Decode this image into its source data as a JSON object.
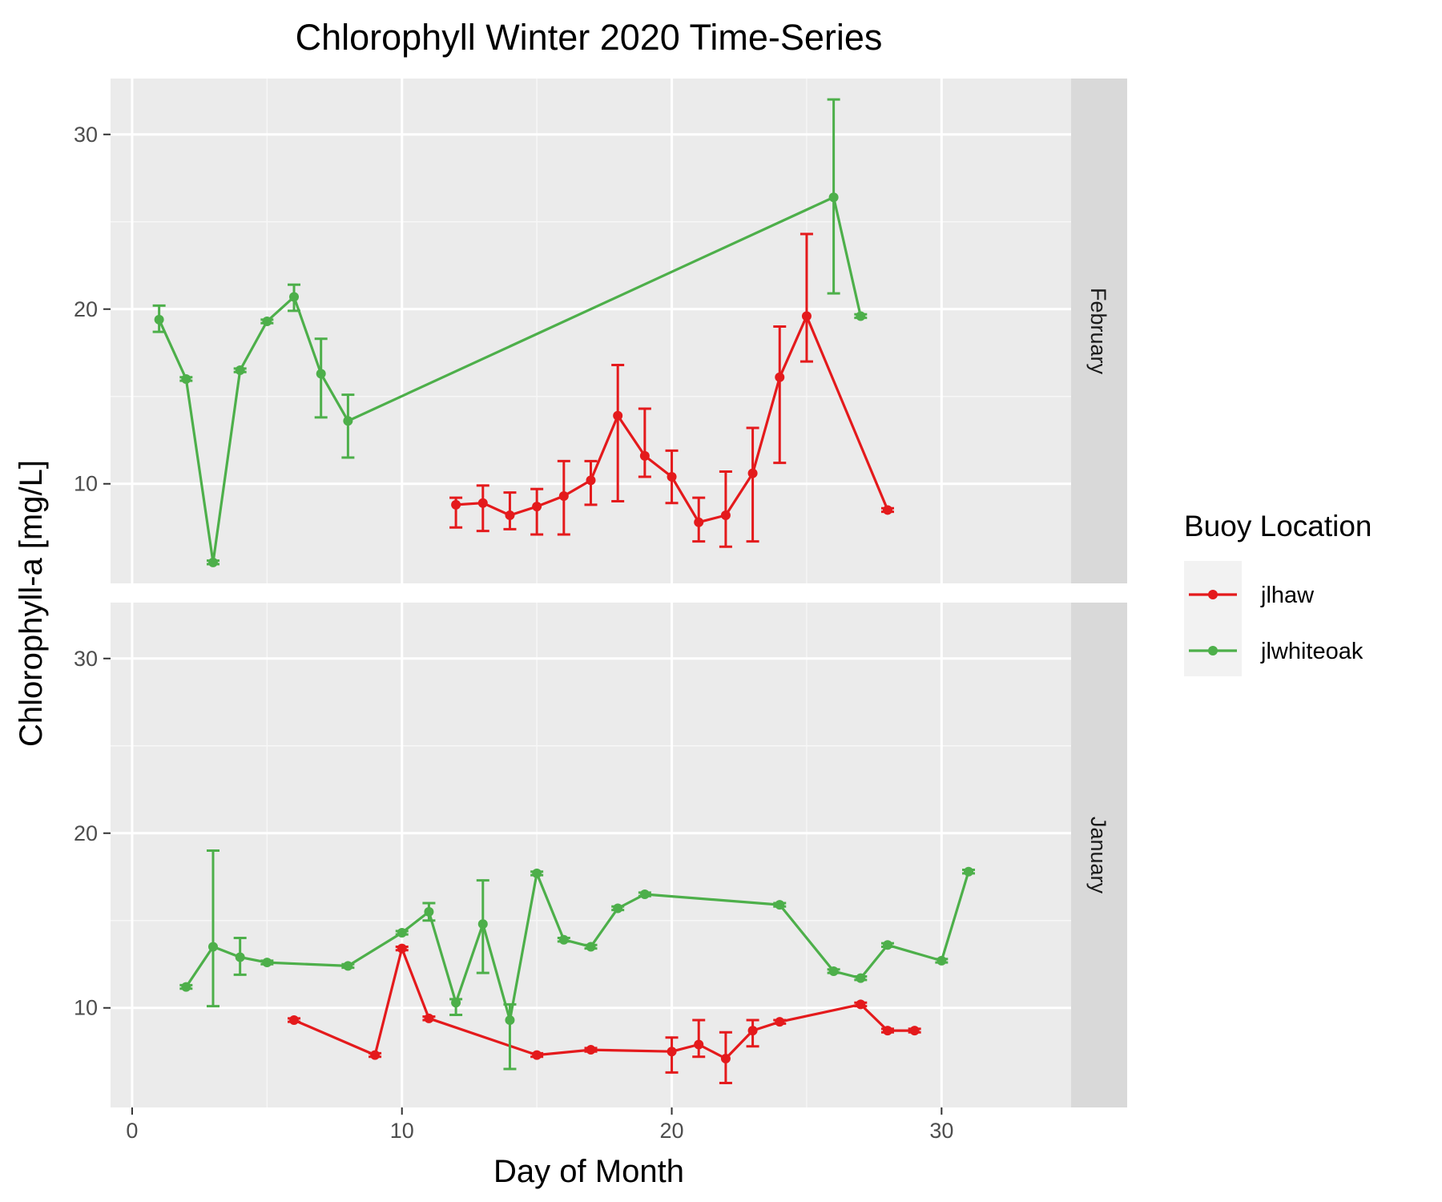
{
  "chart_data": {
    "type": "line",
    "title": "Chlorophyll Winter 2020 Time-Series",
    "xlabel": "Day of Month",
    "ylabel": "Chlorophyll-a [mg/L]",
    "xlim": [
      -0.8,
      34.8
    ],
    "ylim": [
      4.3,
      33.2
    ],
    "x_ticks": [
      0,
      10,
      20,
      30
    ],
    "y_ticks": [
      10,
      20,
      30
    ],
    "grid": true,
    "legend": {
      "title": "Buoy Location",
      "placement": "right",
      "items": [
        {
          "label": "jlhaw",
          "color": "#e41a1c"
        },
        {
          "label": "jlwhiteoak",
          "color": "#4daf4a"
        }
      ]
    },
    "panels": [
      {
        "strip": "February",
        "series": [
          {
            "name": "jlhaw",
            "color": "#e41a1c",
            "points": [
              {
                "x": 12,
                "y": 8.8,
                "lo": 7.5,
                "hi": 9.2
              },
              {
                "x": 13,
                "y": 8.9,
                "lo": 7.3,
                "hi": 9.9
              },
              {
                "x": 14,
                "y": 8.2,
                "lo": 7.4,
                "hi": 9.5
              },
              {
                "x": 15,
                "y": 8.7,
                "lo": 7.1,
                "hi": 9.7
              },
              {
                "x": 16,
                "y": 9.3,
                "lo": 7.1,
                "hi": 11.3
              },
              {
                "x": 17,
                "y": 10.2,
                "lo": 8.8,
                "hi": 11.3
              },
              {
                "x": 18,
                "y": 13.9,
                "lo": 9.0,
                "hi": 16.8
              },
              {
                "x": 19,
                "y": 11.6,
                "lo": 10.4,
                "hi": 14.3
              },
              {
                "x": 20,
                "y": 10.4,
                "lo": 8.9,
                "hi": 11.9
              },
              {
                "x": 21,
                "y": 7.8,
                "lo": 6.7,
                "hi": 9.2
              },
              {
                "x": 22,
                "y": 8.2,
                "lo": 6.4,
                "hi": 10.7
              },
              {
                "x": 23,
                "y": 10.6,
                "lo": 6.7,
                "hi": 13.2
              },
              {
                "x": 24,
                "y": 16.1,
                "lo": 11.2,
                "hi": 19.0
              },
              {
                "x": 25,
                "y": 19.6,
                "lo": 17.0,
                "hi": 24.3
              },
              {
                "x": 28,
                "y": 8.5,
                "lo": 8.4,
                "hi": 8.6
              }
            ]
          },
          {
            "name": "jlwhiteoak",
            "color": "#4daf4a",
            "points": [
              {
                "x": 1,
                "y": 19.4,
                "lo": 18.7,
                "hi": 20.2
              },
              {
                "x": 2,
                "y": 16.0,
                "lo": 15.9,
                "hi": 16.1
              },
              {
                "x": 3,
                "y": 5.5,
                "lo": 5.4,
                "hi": 5.6
              },
              {
                "x": 4,
                "y": 16.5,
                "lo": 16.4,
                "hi": 16.6
              },
              {
                "x": 5,
                "y": 19.3,
                "lo": 19.2,
                "hi": 19.4
              },
              {
                "x": 6,
                "y": 20.7,
                "lo": 19.9,
                "hi": 21.4
              },
              {
                "x": 7,
                "y": 16.3,
                "lo": 13.8,
                "hi": 18.3
              },
              {
                "x": 8,
                "y": 13.6,
                "lo": 11.5,
                "hi": 15.1
              },
              {
                "x": 26,
                "y": 26.4,
                "lo": 20.9,
                "hi": 32.0
              },
              {
                "x": 27,
                "y": 19.6,
                "lo": 19.5,
                "hi": 19.7
              }
            ]
          }
        ]
      },
      {
        "strip": "January",
        "series": [
          {
            "name": "jlhaw",
            "color": "#e41a1c",
            "points": [
              {
                "x": 6,
                "y": 9.3,
                "lo": 9.2,
                "hi": 9.4
              },
              {
                "x": 9,
                "y": 7.3,
                "lo": 7.2,
                "hi": 7.4
              },
              {
                "x": 10,
                "y": 13.4,
                "lo": 13.3,
                "hi": 13.5
              },
              {
                "x": 11,
                "y": 9.4,
                "lo": 9.3,
                "hi": 9.5
              },
              {
                "x": 15,
                "y": 7.3,
                "lo": 7.2,
                "hi": 7.4
              },
              {
                "x": 17,
                "y": 7.6,
                "lo": 7.5,
                "hi": 7.7
              },
              {
                "x": 20,
                "y": 7.5,
                "lo": 6.3,
                "hi": 8.3
              },
              {
                "x": 21,
                "y": 7.9,
                "lo": 7.2,
                "hi": 9.3
              },
              {
                "x": 22,
                "y": 7.1,
                "lo": 5.7,
                "hi": 8.6
              },
              {
                "x": 23,
                "y": 8.7,
                "lo": 7.8,
                "hi": 9.3
              },
              {
                "x": 24,
                "y": 9.2,
                "lo": 9.1,
                "hi": 9.3
              },
              {
                "x": 27,
                "y": 10.2,
                "lo": 10.1,
                "hi": 10.3
              },
              {
                "x": 28,
                "y": 8.7,
                "lo": 8.6,
                "hi": 8.8
              },
              {
                "x": 29,
                "y": 8.7,
                "lo": 8.6,
                "hi": 8.8
              }
            ]
          },
          {
            "name": "jlwhiteoak",
            "color": "#4daf4a",
            "points": [
              {
                "x": 2,
                "y": 11.2,
                "lo": 11.1,
                "hi": 11.3
              },
              {
                "x": 3,
                "y": 13.5,
                "lo": 10.1,
                "hi": 19.0
              },
              {
                "x": 4,
                "y": 12.9,
                "lo": 11.9,
                "hi": 14.0
              },
              {
                "x": 5,
                "y": 12.6,
                "lo": 12.5,
                "hi": 12.7
              },
              {
                "x": 8,
                "y": 12.4,
                "lo": 12.3,
                "hi": 12.5
              },
              {
                "x": 10,
                "y": 14.3,
                "lo": 14.2,
                "hi": 14.4
              },
              {
                "x": 11,
                "y": 15.5,
                "lo": 15.0,
                "hi": 16.0
              },
              {
                "x": 12,
                "y": 10.3,
                "lo": 9.6,
                "hi": 10.5
              },
              {
                "x": 13,
                "y": 14.8,
                "lo": 12.0,
                "hi": 17.3
              },
              {
                "x": 14,
                "y": 9.3,
                "lo": 6.5,
                "hi": 10.2
              },
              {
                "x": 15,
                "y": 17.7,
                "lo": 17.6,
                "hi": 17.8
              },
              {
                "x": 16,
                "y": 13.9,
                "lo": 13.8,
                "hi": 14.0
              },
              {
                "x": 17,
                "y": 13.5,
                "lo": 13.4,
                "hi": 13.6
              },
              {
                "x": 18,
                "y": 15.7,
                "lo": 15.6,
                "hi": 15.8
              },
              {
                "x": 19,
                "y": 16.5,
                "lo": 16.4,
                "hi": 16.6
              },
              {
                "x": 24,
                "y": 15.9,
                "lo": 15.8,
                "hi": 16.0
              },
              {
                "x": 26,
                "y": 12.1,
                "lo": 12.0,
                "hi": 12.2
              },
              {
                "x": 27,
                "y": 11.7,
                "lo": 11.6,
                "hi": 11.8
              },
              {
                "x": 28,
                "y": 13.6,
                "lo": 13.5,
                "hi": 13.7
              },
              {
                "x": 30,
                "y": 12.7,
                "lo": 12.6,
                "hi": 12.8
              },
              {
                "x": 31,
                "y": 17.8,
                "lo": 17.7,
                "hi": 17.9
              }
            ]
          }
        ]
      }
    ]
  }
}
